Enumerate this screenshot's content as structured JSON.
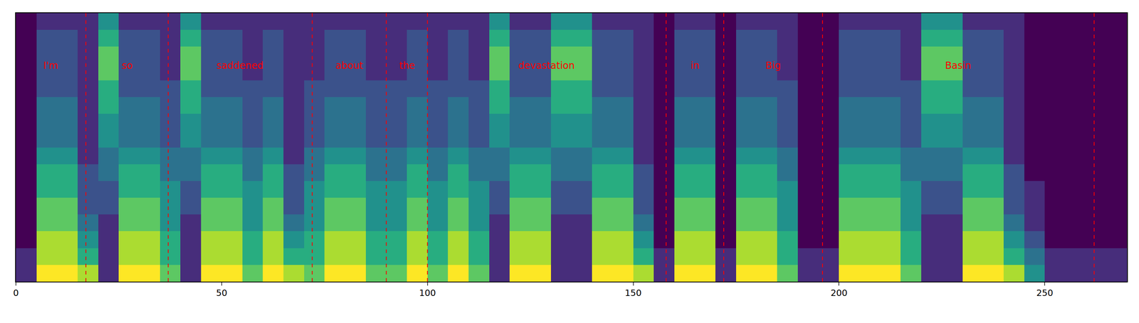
{
  "chart_data": {
    "type": "heatmap",
    "xlim": [
      0,
      270
    ],
    "xticks": [
      0,
      50,
      100,
      150,
      200,
      250
    ],
    "tick_labels": "x",
    "x": [
      2.5,
      7.5,
      12.5,
      17.5,
      22.5,
      27.5,
      32.5,
      37.5,
      42.5,
      47.5,
      52.5,
      57.5,
      62.5,
      67.5,
      72.5,
      77.5,
      82.5,
      87.5,
      92.5,
      97.5,
      102.5,
      107.5,
      112.5,
      117.5,
      122.5,
      127.5,
      132.5,
      137.5,
      142.5,
      147.5,
      152.5,
      157.5,
      162.5,
      167.5,
      172.5,
      177.5,
      182.5,
      187.5,
      192.5,
      197.5,
      202.5,
      207.5,
      212.5,
      217.5,
      222.5,
      227.5,
      232.5,
      237.5,
      242.5,
      247.5,
      252.5,
      257.5,
      262.5,
      267.5
    ],
    "z": [
      [
        1,
        8,
        8,
        7,
        1,
        8,
        8,
        6,
        1,
        8,
        8,
        6,
        8,
        7,
        6,
        8,
        8,
        6,
        6,
        8,
        6,
        8,
        6,
        1,
        8,
        8,
        1,
        1,
        8,
        8,
        7,
        1,
        8,
        8,
        1,
        8,
        8,
        6,
        1,
        1,
        8,
        8,
        8,
        6,
        1,
        1,
        8,
        8,
        7,
        4,
        1,
        1,
        1,
        1
      ],
      [
        1,
        7,
        7,
        5,
        1,
        7,
        7,
        5,
        1,
        7,
        7,
        5,
        7,
        5,
        5,
        7,
        7,
        5,
        5,
        7,
        5,
        7,
        5,
        1,
        7,
        7,
        1,
        1,
        7,
        7,
        5,
        1,
        7,
        7,
        1,
        7,
        7,
        5,
        1,
        1,
        7,
        7,
        7,
        5,
        1,
        1,
        7,
        7,
        5,
        3,
        1,
        1,
        1,
        1
      ],
      [
        0,
        7,
        7,
        4,
        1,
        7,
        7,
        5,
        1,
        7,
        7,
        5,
        7,
        4,
        5,
        7,
        7,
        5,
        5,
        7,
        5,
        7,
        5,
        1,
        7,
        7,
        1,
        1,
        7,
        7,
        4,
        0,
        7,
        7,
        0,
        7,
        7,
        5,
        0,
        0,
        7,
        7,
        7,
        5,
        1,
        1,
        7,
        7,
        4,
        2,
        0,
        0,
        0,
        0
      ],
      [
        0,
        6,
        6,
        3,
        1,
        6,
        6,
        4,
        1,
        6,
        6,
        4,
        6,
        3,
        4,
        6,
        6,
        4,
        4,
        6,
        4,
        6,
        4,
        1,
        6,
        6,
        1,
        1,
        6,
        6,
        3,
        0,
        6,
        6,
        0,
        6,
        6,
        4,
        0,
        0,
        6,
        6,
        6,
        4,
        1,
        1,
        6,
        6,
        3,
        1,
        0,
        0,
        0,
        0
      ],
      [
        0,
        6,
        6,
        2,
        2,
        6,
        6,
        4,
        2,
        6,
        6,
        4,
        6,
        2,
        4,
        6,
        6,
        4,
        4,
        6,
        4,
        6,
        4,
        2,
        6,
        6,
        2,
        2,
        6,
        6,
        2,
        0,
        6,
        6,
        0,
        6,
        6,
        4,
        0,
        0,
        6,
        6,
        6,
        4,
        2,
        2,
        6,
        6,
        2,
        1,
        0,
        0,
        0,
        0
      ],
      [
        0,
        5,
        5,
        2,
        2,
        5,
        5,
        4,
        2,
        5,
        5,
        4,
        5,
        2,
        4,
        5,
        5,
        4,
        4,
        5,
        4,
        5,
        4,
        2,
        5,
        5,
        2,
        2,
        5,
        5,
        2,
        0,
        5,
        5,
        0,
        5,
        5,
        4,
        0,
        0,
        5,
        5,
        5,
        4,
        2,
        2,
        5,
        5,
        2,
        1,
        0,
        0,
        0,
        0
      ],
      [
        0,
        5,
        5,
        2,
        3,
        5,
        5,
        3,
        3,
        5,
        5,
        3,
        5,
        2,
        3,
        5,
        5,
        3,
        3,
        5,
        3,
        5,
        3,
        3,
        5,
        5,
        3,
        3,
        5,
        5,
        2,
        0,
        5,
        5,
        0,
        5,
        5,
        3,
        0,
        0,
        5,
        5,
        5,
        3,
        3,
        3,
        5,
        5,
        2,
        0,
        0,
        0,
        0,
        0
      ],
      [
        0,
        4,
        4,
        1,
        3,
        4,
        4,
        3,
        3,
        4,
        4,
        3,
        4,
        1,
        3,
        4,
        4,
        3,
        3,
        4,
        3,
        4,
        3,
        3,
        4,
        4,
        3,
        3,
        4,
        4,
        1,
        0,
        4,
        4,
        0,
        4,
        4,
        3,
        0,
        0,
        4,
        4,
        4,
        3,
        3,
        3,
        4,
        4,
        1,
        0,
        0,
        0,
        0,
        0
      ],
      [
        0,
        3,
        3,
        1,
        4,
        3,
        3,
        2,
        4,
        3,
        3,
        2,
        3,
        1,
        2,
        3,
        3,
        2,
        2,
        3,
        2,
        3,
        2,
        4,
        3,
        3,
        4,
        4,
        3,
        3,
        1,
        0,
        3,
        3,
        0,
        3,
        3,
        2,
        0,
        0,
        3,
        3,
        3,
        2,
        4,
        4,
        3,
        3,
        1,
        0,
        0,
        0,
        0,
        0
      ],
      [
        0,
        3,
        3,
        1,
        4,
        3,
        3,
        2,
        4,
        3,
        3,
        2,
        3,
        1,
        2,
        3,
        3,
        2,
        2,
        3,
        2,
        3,
        2,
        4,
        3,
        3,
        4,
        4,
        3,
        3,
        1,
        0,
        3,
        3,
        0,
        3,
        3,
        2,
        0,
        0,
        3,
        3,
        3,
        2,
        4,
        4,
        3,
        3,
        1,
        0,
        0,
        0,
        0,
        0
      ],
      [
        0,
        3,
        3,
        1,
        5,
        3,
        3,
        2,
        5,
        3,
        3,
        2,
        3,
        1,
        2,
        3,
        3,
        2,
        2,
        3,
        2,
        3,
        2,
        5,
        3,
        3,
        5,
        5,
        3,
        3,
        1,
        0,
        3,
        3,
        0,
        3,
        3,
        2,
        0,
        0,
        3,
        3,
        3,
        2,
        5,
        5,
        3,
        3,
        1,
        0,
        0,
        0,
        0,
        0
      ],
      [
        0,
        2,
        2,
        1,
        5,
        2,
        2,
        2,
        5,
        2,
        2,
        2,
        2,
        1,
        2,
        2,
        2,
        2,
        2,
        2,
        2,
        2,
        2,
        5,
        2,
        2,
        5,
        5,
        2,
        2,
        1,
        0,
        2,
        2,
        0,
        2,
        2,
        2,
        0,
        0,
        2,
        2,
        2,
        2,
        5,
        5,
        2,
        2,
        1,
        0,
        0,
        0,
        0,
        0
      ],
      [
        0,
        2,
        2,
        1,
        6,
        2,
        2,
        1,
        6,
        2,
        2,
        1,
        2,
        1,
        1,
        2,
        2,
        1,
        1,
        2,
        1,
        2,
        1,
        6,
        2,
        2,
        6,
        6,
        2,
        2,
        1,
        0,
        2,
        2,
        0,
        2,
        2,
        1,
        0,
        0,
        2,
        2,
        2,
        1,
        6,
        6,
        2,
        2,
        1,
        0,
        0,
        0,
        0,
        0
      ],
      [
        0,
        2,
        2,
        1,
        6,
        2,
        2,
        1,
        6,
        2,
        2,
        1,
        2,
        1,
        1,
        2,
        2,
        1,
        1,
        2,
        1,
        2,
        1,
        6,
        2,
        2,
        6,
        6,
        2,
        2,
        1,
        0,
        2,
        2,
        0,
        2,
        2,
        1,
        0,
        0,
        2,
        2,
        2,
        1,
        6,
        6,
        2,
        2,
        1,
        0,
        0,
        0,
        0,
        0
      ],
      [
        0,
        2,
        2,
        1,
        5,
        2,
        2,
        1,
        5,
        2,
        2,
        1,
        2,
        1,
        1,
        2,
        2,
        1,
        1,
        2,
        1,
        2,
        1,
        5,
        2,
        2,
        5,
        5,
        2,
        2,
        1,
        0,
        2,
        2,
        0,
        2,
        2,
        1,
        0,
        0,
        2,
        2,
        2,
        1,
        5,
        5,
        2,
        2,
        1,
        0,
        0,
        0,
        0,
        0
      ],
      [
        0,
        1,
        1,
        1,
        4,
        1,
        1,
        1,
        4,
        1,
        1,
        1,
        1,
        1,
        1,
        1,
        1,
        1,
        1,
        1,
        1,
        1,
        1,
        4,
        1,
        1,
        4,
        4,
        1,
        1,
        1,
        0,
        1,
        1,
        0,
        1,
        1,
        1,
        0,
        0,
        1,
        1,
        1,
        1,
        4,
        4,
        1,
        1,
        1,
        0,
        0,
        0,
        0,
        0
      ]
    ],
    "segments": [
      {
        "label": "I'm",
        "start": 0,
        "end": 17
      },
      {
        "label": "so",
        "start": 17,
        "end": 37
      },
      {
        "label": "saddened",
        "start": 37,
        "end": 72
      },
      {
        "label": "about",
        "start": 72,
        "end": 90
      },
      {
        "label": "the",
        "start": 90,
        "end": 100
      },
      {
        "label": "devastation",
        "start": 100,
        "end": 158
      },
      {
        "label": "in",
        "start": 158,
        "end": 172
      },
      {
        "label": "Big",
        "start": 172,
        "end": 196
      },
      {
        "label": "Basin",
        "start": 196,
        "end": 262
      }
    ],
    "color": "red",
    "line_style": "dashed"
  }
}
